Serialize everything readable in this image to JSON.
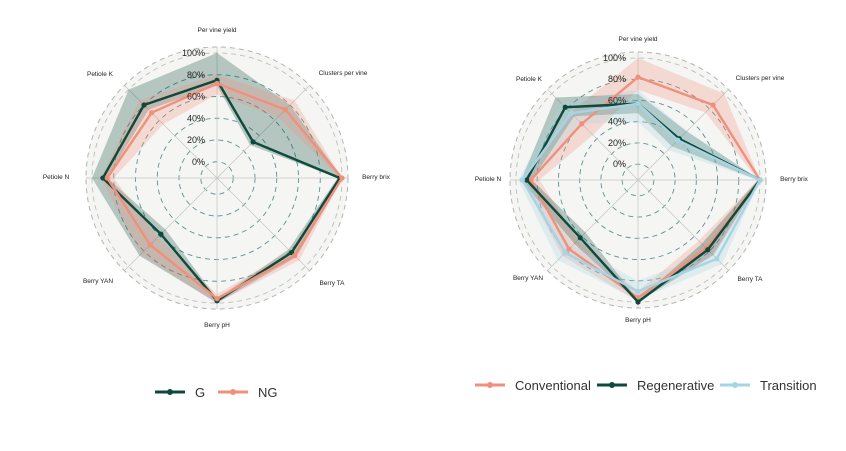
{
  "colors": {
    "G": "#0e4a3c",
    "NG": "#f0907c",
    "Conventional": "#f0907c",
    "Regenerative": "#0e4a3c",
    "Transition": "#a6d4e3",
    "grid_dashed": "#3f7f86",
    "grid_outer": "#b4b4b4",
    "spoke": "#c4c4c4",
    "background_disc": "#f5f5f3"
  },
  "chart_data": [
    {
      "type": "radar",
      "axes": [
        "Per vine yield",
        "Clusters per vine",
        "Berry brix",
        "Berry TA",
        "Berry pH",
        "Berry YAN",
        "Petiole N",
        "Petiole K"
      ],
      "radial_ticks": [
        "0%",
        "20%",
        "40%",
        "60%",
        "80%",
        "100%"
      ],
      "rlim": [
        0,
        100
      ],
      "series": [
        {
          "name": "G",
          "values": [
            75,
            32,
            98,
            82,
            98,
            58,
            90,
            80
          ],
          "lower": [
            70,
            28,
            96,
            78,
            96,
            52,
            86,
            74
          ],
          "upper": [
            100,
            80,
            100,
            88,
            100,
            86,
            100,
            100
          ]
        },
        {
          "name": "NG",
          "values": [
            72,
            74,
            100,
            86,
            96,
            72,
            86,
            70
          ],
          "lower": [
            62,
            64,
            98,
            80,
            92,
            62,
            80,
            55
          ],
          "upper": [
            80,
            86,
            100,
            92,
            100,
            84,
            92,
            86
          ]
        }
      ],
      "legend": [
        "G",
        "NG"
      ],
      "legend_position": "bottom"
    },
    {
      "type": "radar",
      "axes": [
        "Per vine yield",
        "Clusters per vine",
        "Berry brix",
        "Berry TA",
        "Berry pH",
        "Berry YAN",
        "Petiole N",
        "Petiole K"
      ],
      "radial_ticks": [
        "0%",
        "20%",
        "40%",
        "60%",
        "80%",
        "100%"
      ],
      "rlim": [
        0,
        100
      ],
      "series": [
        {
          "name": "Conventional",
          "values": [
            82,
            85,
            100,
            76,
            96,
            77,
            86,
            60
          ],
          "lower": [
            70,
            75,
            98,
            66,
            90,
            65,
            78,
            45
          ],
          "upper": [
            100,
            100,
            100,
            86,
            100,
            86,
            94,
            75
          ]
        },
        {
          "name": "Regenerative",
          "values": [
            57,
            40,
            100,
            78,
            100,
            62,
            90,
            82
          ],
          "lower": [
            48,
            30,
            98,
            70,
            98,
            55,
            85,
            70
          ],
          "upper": [
            66,
            50,
            100,
            85,
            100,
            70,
            95,
            95
          ]
        },
        {
          "name": "Transition",
          "values": [
            57,
            38,
            100,
            90,
            90,
            82,
            94,
            74
          ],
          "lower": [
            40,
            25,
            98,
            82,
            80,
            72,
            88,
            60
          ],
          "upper": [
            70,
            50,
            100,
            97,
            98,
            92,
            98,
            88
          ]
        }
      ],
      "legend": [
        "Conventional",
        "Regenerative",
        "Transition"
      ],
      "legend_position": "bottom"
    }
  ]
}
